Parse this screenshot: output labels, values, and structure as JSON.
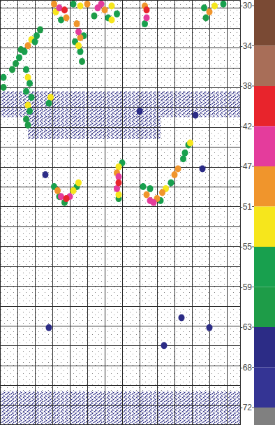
{
  "chart_data": {
    "type": "echogram",
    "grid": true,
    "tick_labels": false,
    "xlim": [
      0,
      13.8
    ],
    "ylim": [
      22,
      0.6
    ],
    "xticks": [
      1,
      2,
      3,
      4,
      5,
      6,
      7,
      8,
      9,
      10,
      11,
      12,
      13
    ],
    "yticks": [
      1,
      2,
      3,
      4,
      5,
      6,
      7,
      8,
      9,
      10,
      11,
      12,
      13,
      14,
      15,
      16,
      17,
      18,
      19,
      20,
      21
    ],
    "x": [
      2.3,
      2.1,
      1.8,
      1.6,
      1.4,
      1.1,
      0.9,
      0.7,
      2.0,
      1.2,
      1.5,
      1.6,
      1.7,
      1.5,
      1.8,
      1.6,
      1.7,
      1.5,
      1.6,
      2.9,
      2.8,
      0.2,
      0.2,
      3.5,
      3.2,
      3.8,
      3.1,
      3.4,
      3.7,
      5.4,
      6.2,
      6.7,
      4.2,
      4.6,
      5.0,
      6.4,
      6.4,
      6.0,
      5.6,
      5.8,
      4.7,
      4.6,
      4.3,
      4.8,
      4.5,
      4.4,
      4.6,
      4.5,
      8.3,
      8.3,
      8.4,
      8.4,
      11.8,
      12.8,
      11.7,
      12.3,
      12.0,
      3.7,
      3.4,
      3.1,
      4.4,
      4.5,
      4.2,
      3.3,
      4.0,
      3.5,
      3.8,
      6.8,
      7.0,
      6.8,
      6.8,
      6.7,
      6.7,
      6.8,
      6.8,
      10.8,
      8.2,
      9.2,
      10.6,
      8.6,
      9.8,
      10.5,
      10.9,
      9.5,
      9.3,
      10.0,
      8.4,
      9.0,
      10.2,
      8.8,
      8.6,
      2.6,
      11.6,
      11.2,
      8.0,
      10.4,
      12.0,
      9.4,
      2.8
    ],
    "values": [
      2.1,
      2.4,
      2.6,
      2.9,
      3.2,
      3.5,
      3.8,
      4.1,
      2.7,
      3.1,
      4.1,
      4.5,
      4.8,
      5.2,
      5.5,
      5.9,
      6.2,
      6.6,
      6.9,
      5.5,
      5.8,
      4.5,
      5.0,
      1.6,
      1.2,
      1.5,
      0.8,
      1.0,
      1.1,
      1.4,
      1.5,
      1.3,
      0.8,
      0.9,
      0.8,
      0.9,
      1.6,
      1.1,
      1.0,
      0.8,
      3.7,
      3.2,
      2.7,
      2.4,
      2.9,
      1.8,
      2.5,
      2.2,
      1.8,
      0.9,
      1.5,
      1.1,
      1.5,
      0.8,
      1.0,
      0.9,
      1.2,
      10.8,
      10.5,
      10.0,
      10.0,
      9.8,
      10.2,
      10.2,
      10.5,
      10.5,
      10.6,
      10.6,
      8.8,
      9.0,
      10.4,
      9.3,
      10.1,
      9.5,
      9.8,
      7.9,
      10.0,
      10.7,
      8.3,
      10.1,
      9.8,
      8.6,
      7.8,
      10.1,
      10.3,
      9.4,
      10.4,
      10.6,
      9.1,
      10.8,
      10.7,
      9.4,
      9.1,
      6.4,
      6.2,
      16.6,
      17.1,
      18.0,
      17.1
    ],
    "sv": [
      -60,
      -55,
      -52,
      -50,
      -55,
      -58,
      -60,
      -62,
      -58,
      -60,
      -58,
      -52,
      -55,
      -58,
      -56,
      -53,
      -58,
      -60,
      -62,
      -53,
      -55,
      -58,
      -60,
      -58,
      -52,
      -50,
      -48,
      -45,
      -40,
      -60,
      -58,
      -55,
      -55,
      -52,
      -50,
      -52,
      -52,
      -48,
      -45,
      -42,
      -62,
      -58,
      -58,
      -55,
      -52,
      -50,
      -48,
      -45,
      -55,
      -50,
      -42,
      -40,
      -60,
      -58,
      -55,
      -52,
      -48,
      -60,
      -60,
      -58,
      -58,
      -53,
      -52,
      -48,
      -45,
      -42,
      -40,
      -60,
      -55,
      -53,
      -52,
      -48,
      -45,
      -42,
      -40,
      -60,
      -58,
      -58,
      -58,
      -55,
      -55,
      -55,
      -53,
      -52,
      -50,
      -50,
      -48,
      -48,
      -48,
      -45,
      -42,
      -66,
      -66,
      -66,
      -66,
      -66,
      -66,
      -66,
      -66
    ],
    "layers": [
      {
        "x": [
          0,
          13.8
        ],
        "y": [
          0.6,
          22
        ],
        "sv": -74
      },
      {
        "x": [
          0,
          13.8
        ],
        "y": [
          5.2,
          6.5
        ],
        "sv": -66
      },
      {
        "x": [
          1.6,
          9.2
        ],
        "y": [
          6.4,
          7.6
        ],
        "sv": -66
      },
      {
        "x": [
          0,
          13.8
        ],
        "y": [
          20.3,
          22
        ],
        "sv": -66
      }
    ],
    "colorbar": {
      "ticks": [
        -30,
        -34,
        -38,
        -42,
        -47,
        -51,
        -55,
        -59,
        -63,
        -68,
        -72
      ],
      "colors": [
        "#7a4a34",
        "#a86e58",
        "#e8242c",
        "#e43c9c",
        "#f0952c",
        "#f6e61c",
        "#18a04e",
        "#1e9c48",
        "#2c2c86",
        "#343494",
        "#808080"
      ]
    }
  }
}
